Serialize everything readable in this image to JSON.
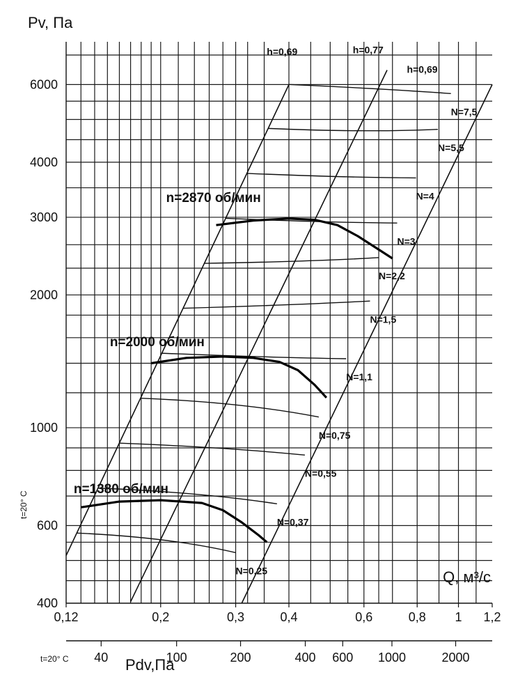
{
  "chart_data": {
    "type": "line",
    "title": "",
    "ylabel": "Pv, Па",
    "xlabel": "Q, м³/с",
    "x_scale": "log",
    "y_scale": "log",
    "xlim": [
      0.12,
      1.2
    ],
    "ylim": [
      400,
      7500
    ],
    "y_ticks": [
      {
        "value": 400,
        "label": "400"
      },
      {
        "value": 600,
        "label": "600"
      },
      {
        "value": 1000,
        "label": "1000"
      },
      {
        "value": 2000,
        "label": "2000"
      },
      {
        "value": 3000,
        "label": "3000"
      },
      {
        "value": 4000,
        "label": "4000"
      },
      {
        "value": 6000,
        "label": "6000"
      }
    ],
    "x_ticks": [
      {
        "value": 0.12,
        "label": "0,12"
      },
      {
        "value": 0.2,
        "label": "0,2"
      },
      {
        "value": 0.3,
        "label": "0,3"
      },
      {
        "value": 0.4,
        "label": "0,4"
      },
      {
        "value": 0.6,
        "label": "0,6"
      },
      {
        "value": 0.8,
        "label": "0,8"
      },
      {
        "value": 1.0,
        "label": "1"
      },
      {
        "value": 1.2,
        "label": "1,2"
      }
    ],
    "pdv_axis": {
      "label": "Pdv,Па",
      "note": "t=20° C",
      "ticks": [
        {
          "q": 0.145,
          "label": "40"
        },
        {
          "q": 0.218,
          "label": "100"
        },
        {
          "q": 0.308,
          "label": "200"
        },
        {
          "q": 0.437,
          "label": "400"
        },
        {
          "q": 0.535,
          "label": "600"
        },
        {
          "q": 0.698,
          "label": "1000"
        },
        {
          "q": 0.985,
          "label": "2000"
        }
      ]
    },
    "side_note": "t=20° C",
    "grid": true,
    "series": [
      {
        "name": "n=2870 об/мин",
        "label_at": {
          "q": 0.206,
          "p": 3250
        },
        "points": [
          [
            0.27,
            2880
          ],
          [
            0.33,
            2950
          ],
          [
            0.4,
            2980
          ],
          [
            0.46,
            2960
          ],
          [
            0.52,
            2880
          ],
          [
            0.58,
            2720
          ],
          [
            0.64,
            2560
          ],
          [
            0.7,
            2420
          ]
        ]
      },
      {
        "name": "n=2000 об/мин",
        "label_at": {
          "q": 0.152,
          "p": 1530
        },
        "points": [
          [
            0.19,
            1400
          ],
          [
            0.23,
            1440
          ],
          [
            0.28,
            1450
          ],
          [
            0.33,
            1440
          ],
          [
            0.38,
            1410
          ],
          [
            0.42,
            1350
          ],
          [
            0.46,
            1250
          ],
          [
            0.49,
            1170
          ]
        ]
      },
      {
        "name": "n=1380 об/мин",
        "label_at": {
          "q": 0.125,
          "p": 710
        },
        "points": [
          [
            0.13,
            660
          ],
          [
            0.16,
            680
          ],
          [
            0.2,
            685
          ],
          [
            0.25,
            675
          ],
          [
            0.28,
            650
          ],
          [
            0.31,
            610
          ],
          [
            0.34,
            570
          ],
          [
            0.355,
            550
          ]
        ]
      }
    ],
    "efficiency_lines": [
      {
        "label": "h=0,69",
        "label_at": {
          "q": 0.355,
          "p": 7000
        },
        "points": [
          [
            0.12,
            513
          ],
          [
            0.4,
            6000
          ]
        ]
      },
      {
        "label": "h=0,77",
        "label_at": {
          "q": 0.565,
          "p": 7060
        },
        "points": [
          [
            0.17,
            403
          ],
          [
            0.68,
            6470
          ]
        ]
      },
      {
        "label": "h=0,69",
        "label_at": {
          "q": 0.757,
          "p": 6380
        },
        "points": [
          [
            0.31,
            400
          ],
          [
            1.2,
            6000
          ]
        ]
      }
    ],
    "power_curves": [
      {
        "label": "N=0,25",
        "label_at": {
          "q": 0.3,
          "p": 465
        }
      },
      {
        "label": "N=0,37",
        "label_at": {
          "q": 0.375,
          "p": 600
        }
      },
      {
        "label": "N=0,55",
        "label_at": {
          "q": 0.436,
          "p": 774
        }
      },
      {
        "label": "N=0,75",
        "label_at": {
          "q": 0.47,
          "p": 944
        }
      },
      {
        "label": "N=1,1",
        "label_at": {
          "q": 0.545,
          "p": 1280
        }
      },
      {
        "label": "N=1,5",
        "label_at": {
          "q": 0.62,
          "p": 1730
        }
      },
      {
        "label": "N=2,2",
        "label_at": {
          "q": 0.65,
          "p": 2170
        }
      },
      {
        "label": "N=3",
        "label_at": {
          "q": 0.718,
          "p": 2600
        }
      },
      {
        "label": "N=4",
        "label_at": {
          "q": 0.795,
          "p": 3290
        }
      },
      {
        "label": "N=5,5",
        "label_at": {
          "q": 0.895,
          "p": 4240
        }
      },
      {
        "label": "N=7,5",
        "label_at": {
          "q": 0.96,
          "p": 5110
        }
      }
    ]
  }
}
